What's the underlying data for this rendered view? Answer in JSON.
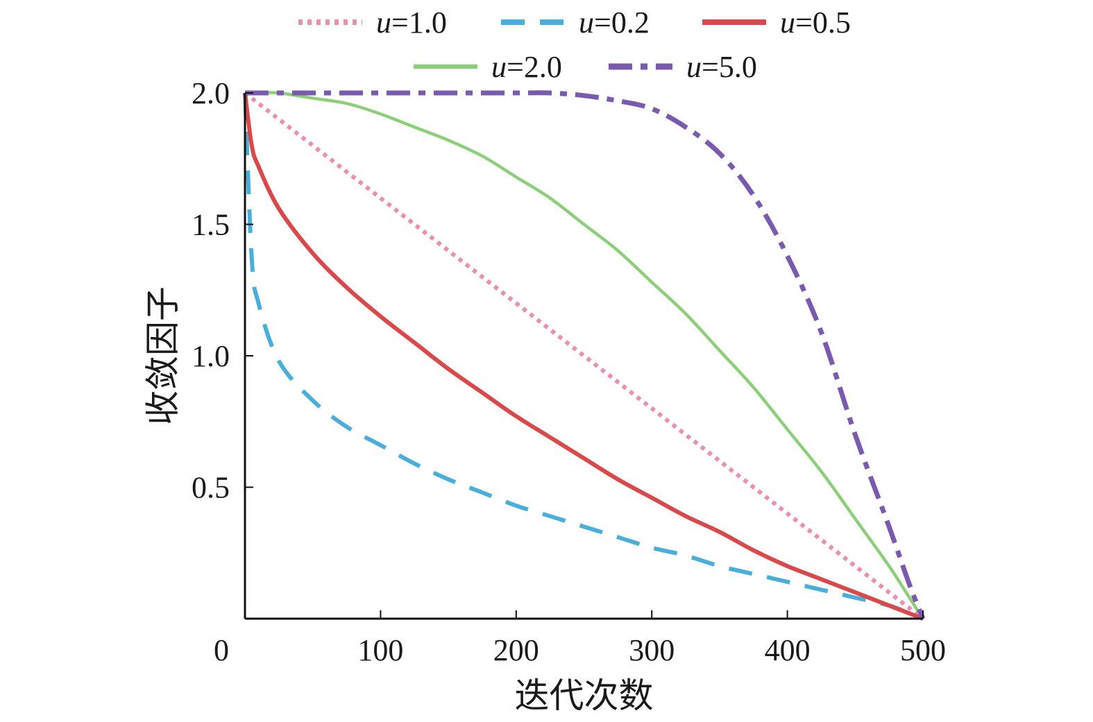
{
  "chart_data": {
    "type": "line",
    "title": "",
    "xlabel": "迭代次数",
    "ylabel": "收敛因子",
    "xlim": [
      0,
      500
    ],
    "ylim": [
      0,
      2.0
    ],
    "x_ticks": [
      {
        "value": 0,
        "label": "0"
      },
      {
        "value": 100,
        "label": "100"
      },
      {
        "value": 200,
        "label": "200"
      },
      {
        "value": 300,
        "label": "300"
      },
      {
        "value": 400,
        "label": "400"
      },
      {
        "value": 500,
        "label": "500"
      }
    ],
    "y_ticks": [
      {
        "value": 0.5,
        "label": "0.5"
      },
      {
        "value": 1.0,
        "label": "1.0"
      },
      {
        "value": 1.5,
        "label": "1.5"
      },
      {
        "value": 2.0,
        "label": "2.0"
      }
    ],
    "grid": false,
    "legend_position": "top",
    "x": [
      0,
      5,
      10,
      25,
      50,
      75,
      100,
      125,
      150,
      175,
      200,
      225,
      250,
      275,
      300,
      325,
      350,
      375,
      400,
      425,
      450,
      475,
      490,
      500
    ],
    "series": [
      {
        "name": "u=1.0",
        "param": "u",
        "value": "=1.0",
        "color": "#ea8fb0",
        "style": "dotted",
        "values": [
          2.0,
          1.98,
          1.96,
          1.9,
          1.8,
          1.7,
          1.6,
          1.5,
          1.4,
          1.3,
          1.2,
          1.1,
          1.0,
          0.9,
          0.8,
          0.7,
          0.6,
          0.5,
          0.4,
          0.3,
          0.2,
          0.1,
          0.04,
          0.0
        ]
      },
      {
        "name": "u=0.2",
        "param": "u",
        "value": "=0.2",
        "color": "#4aaedb",
        "style": "dashed",
        "values": [
          2.0,
          1.37,
          1.2,
          0.98,
          0.83,
          0.73,
          0.66,
          0.59,
          0.53,
          0.48,
          0.43,
          0.39,
          0.35,
          0.31,
          0.27,
          0.24,
          0.2,
          0.17,
          0.14,
          0.11,
          0.08,
          0.05,
          0.02,
          0.0
        ]
      },
      {
        "name": "u=0.5",
        "param": "u",
        "value": "=0.5",
        "color": "#d9484a",
        "style": "solid",
        "values": [
          2.0,
          1.8,
          1.72,
          1.56,
          1.39,
          1.26,
          1.15,
          1.05,
          0.95,
          0.86,
          0.77,
          0.69,
          0.61,
          0.53,
          0.46,
          0.39,
          0.33,
          0.26,
          0.2,
          0.15,
          0.1,
          0.05,
          0.02,
          0.0
        ]
      },
      {
        "name": "u=2.0",
        "param": "u",
        "value": "=2.0",
        "color": "#8dce7a",
        "style": "solid-thin",
        "values": [
          2.0,
          2.0,
          2.0,
          2.0,
          1.98,
          1.96,
          1.92,
          1.87,
          1.82,
          1.76,
          1.68,
          1.6,
          1.5,
          1.4,
          1.28,
          1.16,
          1.02,
          0.88,
          0.72,
          0.56,
          0.38,
          0.2,
          0.08,
          0.0
        ]
      },
      {
        "name": "u=5.0",
        "param": "u",
        "value": "=5.0",
        "color": "#7a5aaf",
        "style": "dashdot",
        "values": [
          2.0,
          2.0,
          2.0,
          2.0,
          2.0,
          2.0,
          2.0,
          2.0,
          2.0,
          2.0,
          2.0,
          2.0,
          1.99,
          1.97,
          1.94,
          1.87,
          1.77,
          1.61,
          1.38,
          1.09,
          0.7,
          0.35,
          0.13,
          0.0
        ]
      }
    ]
  }
}
